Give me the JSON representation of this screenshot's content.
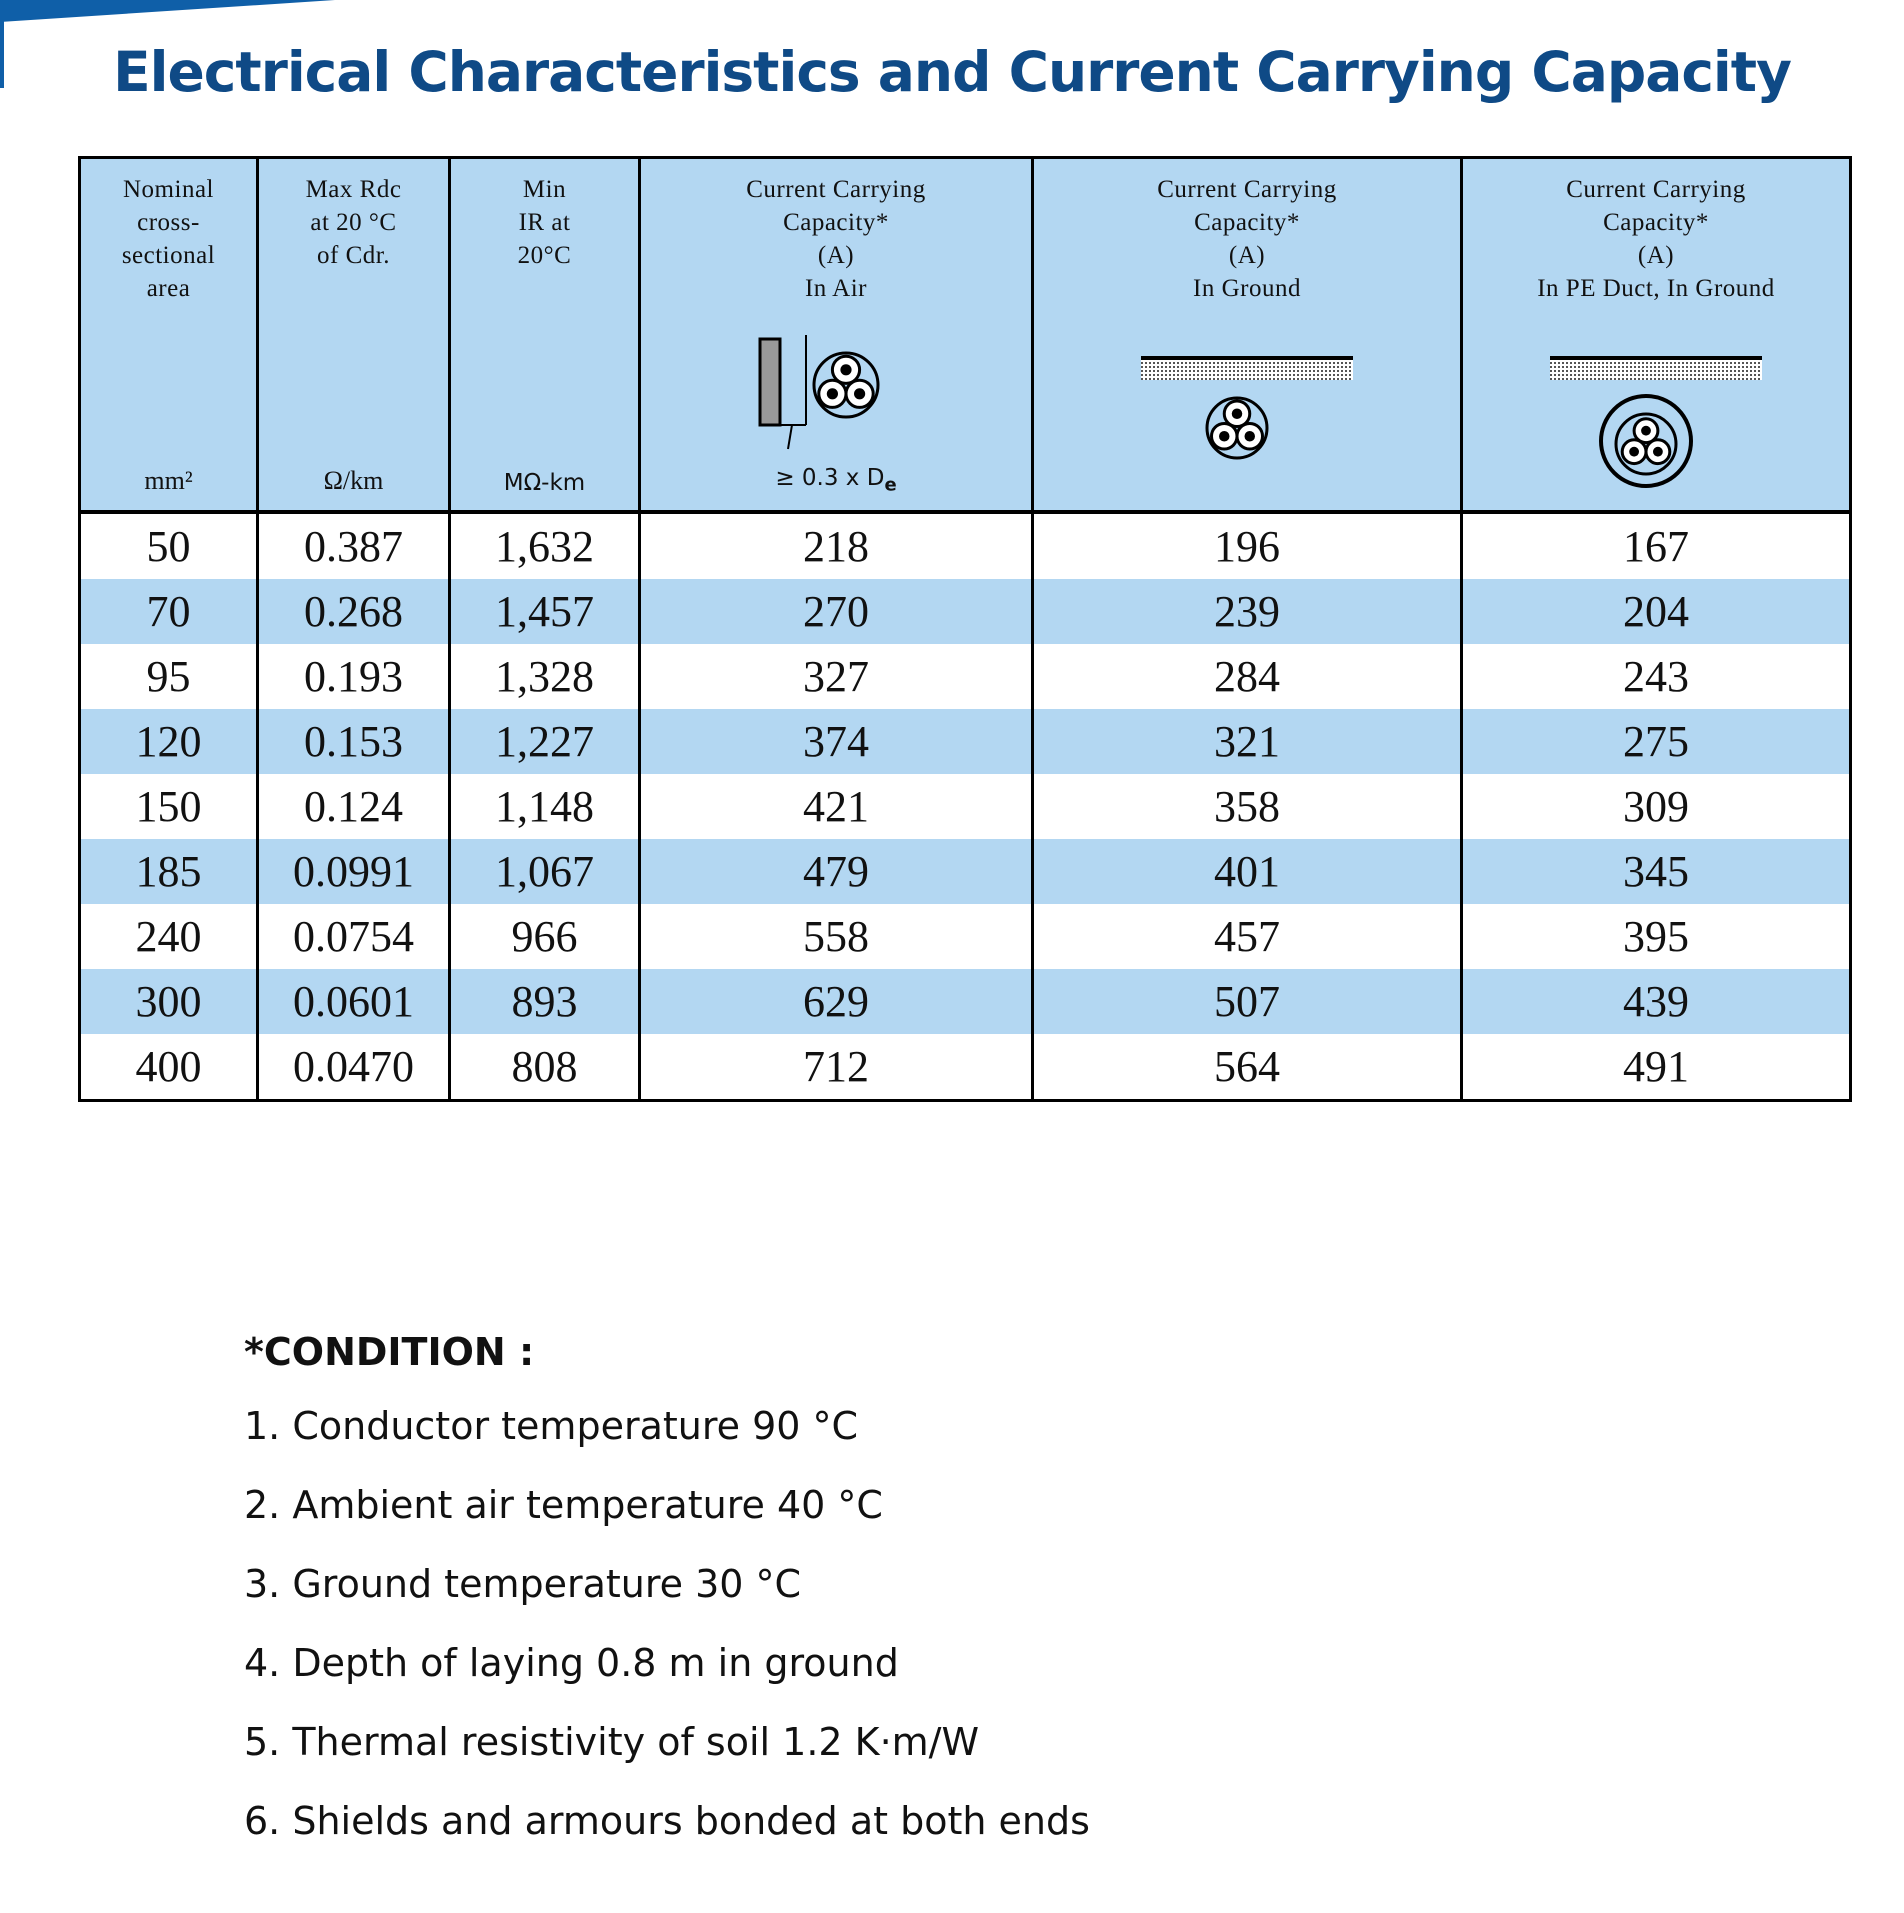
{
  "title": "Electrical Characteristics and Current Carrying Capacity",
  "table": {
    "columns": [
      {
        "lines": [
          "Nominal",
          "cross-",
          "sectional",
          "area"
        ],
        "unit": "mm²"
      },
      {
        "lines": [
          "Max Rdc",
          "at 20 °C",
          "of Cdr."
        ],
        "unit": "Ω/km"
      },
      {
        "lines": [
          "Min",
          "IR at",
          "20°C"
        ],
        "unit": "MΩ-km"
      },
      {
        "lines": [
          "Current Carrying",
          "Capacity*",
          "(A)",
          "In Air"
        ],
        "unit": "≥ 0.3 x D",
        "unit_sub": "e"
      },
      {
        "lines": [
          "Current Carrying",
          "Capacity*",
          "(A)",
          "In Ground"
        ]
      },
      {
        "lines": [
          "Current Carrying",
          "Capacity*",
          "(A)",
          "In PE Duct, In Ground"
        ]
      }
    ],
    "rows": [
      [
        "50",
        "0.387",
        "1,632",
        "218",
        "196",
        "167"
      ],
      [
        "70",
        "0.268",
        "1,457",
        "270",
        "239",
        "204"
      ],
      [
        "95",
        "0.193",
        "1,328",
        "327",
        "284",
        "243"
      ],
      [
        "120",
        "0.153",
        "1,227",
        "374",
        "321",
        "275"
      ],
      [
        "150",
        "0.124",
        "1,148",
        "421",
        "358",
        "309"
      ],
      [
        "185",
        "0.0991",
        "1,067",
        "479",
        "401",
        "345"
      ],
      [
        "240",
        "0.0754",
        "966",
        "558",
        "457",
        "395"
      ],
      [
        "300",
        "0.0601",
        "893",
        "629",
        "507",
        "439"
      ],
      [
        "400",
        "0.0470",
        "808",
        "712",
        "564",
        "491"
      ]
    ]
  },
  "conditions": {
    "heading": "*CONDITION :",
    "items": [
      "1. Conductor temperature 90 °C",
      "2. Ambient air temperature 40 °C",
      "3. Ground temperature 30 °C",
      "4. Depth of laying 0.8 m in ground",
      "5. Thermal resistivity of soil 1.2 K·m/W",
      "6. Shields and armours bonded at both ends"
    ]
  }
}
